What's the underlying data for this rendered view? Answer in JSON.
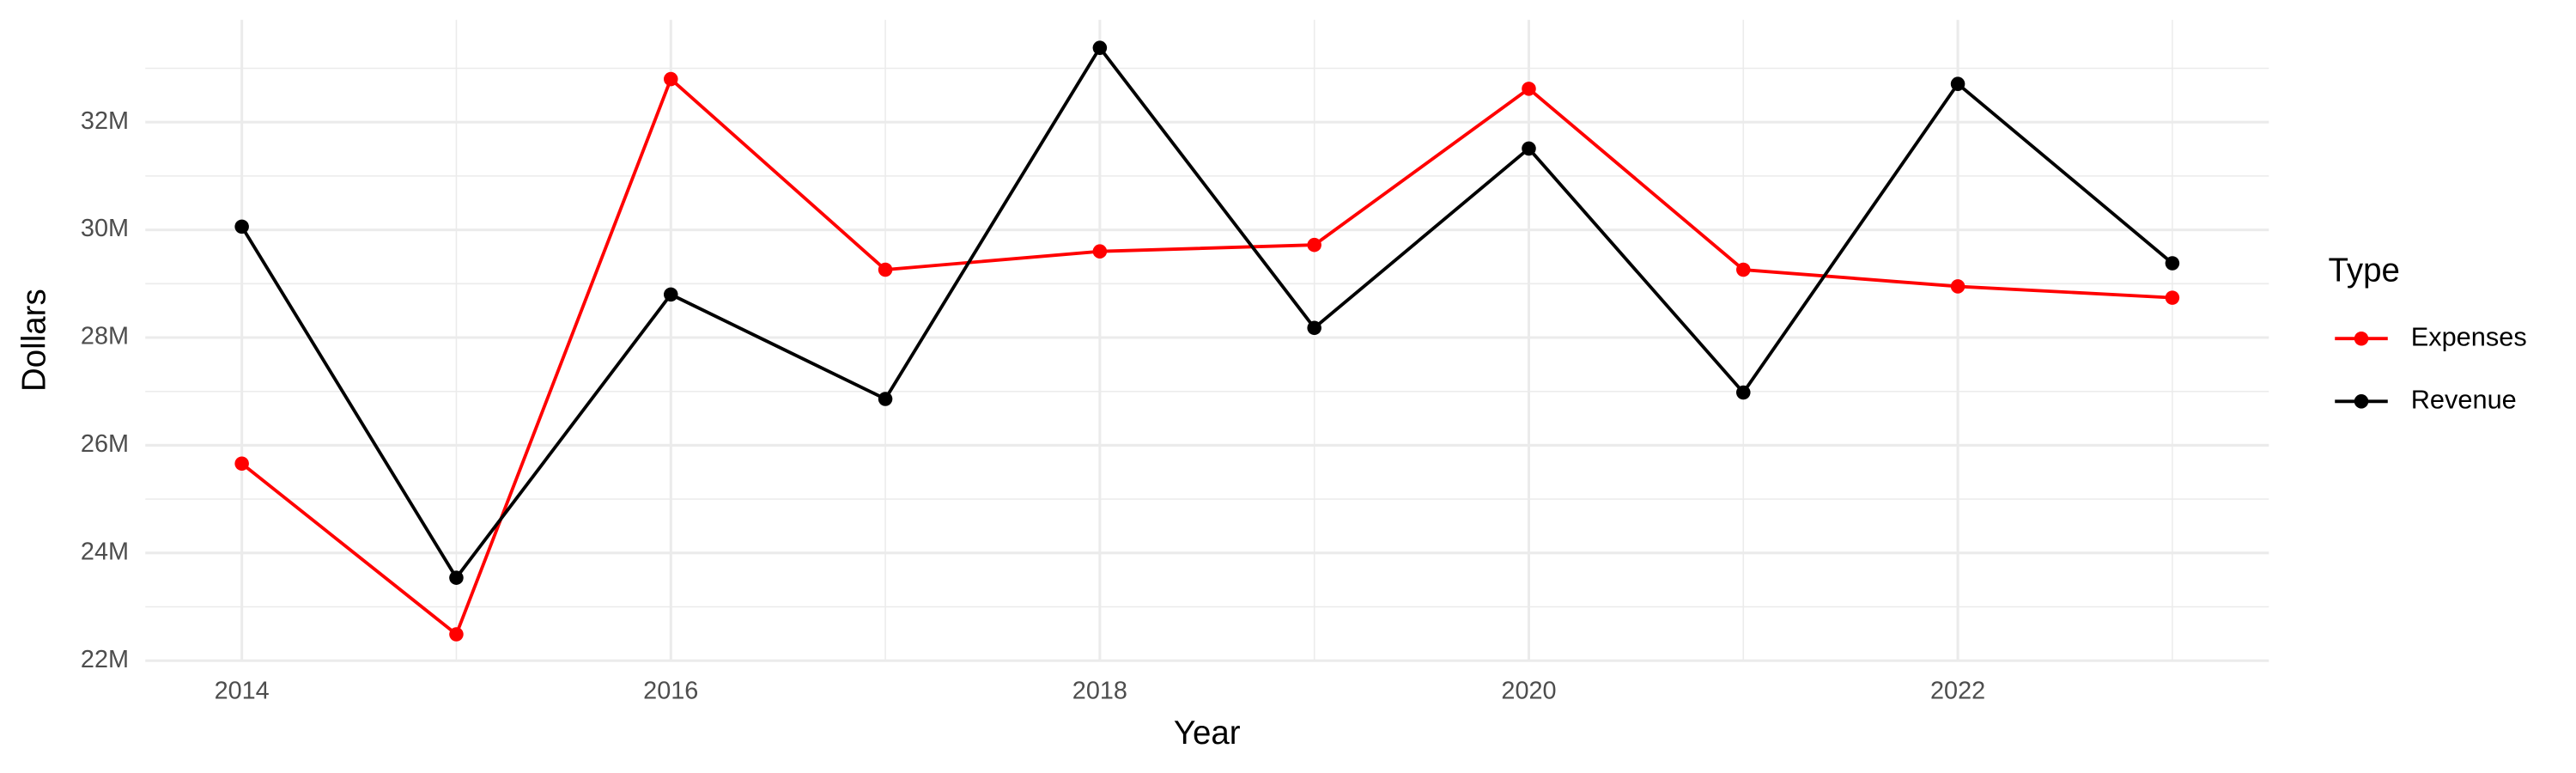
{
  "chart_data": {
    "type": "line",
    "x_label": "Year",
    "y_label": "Dollars",
    "legend_title": "Type",
    "legend_position": "right",
    "grid": true,
    "x": [
      2014,
      2015,
      2016,
      2017,
      2018,
      2019,
      2020,
      2021,
      2022,
      2023
    ],
    "series": [
      {
        "name": "Expenses",
        "color": "#ff0000",
        "values": [
          25660000,
          22490000,
          32800000,
          29260000,
          29600000,
          29720000,
          32620000,
          29260000,
          28950000,
          28740000
        ]
      },
      {
        "name": "Revenue",
        "color": "#000000",
        "values": [
          30060000,
          23540000,
          28800000,
          26860000,
          33380000,
          28180000,
          31510000,
          26980000,
          32710000,
          29380000
        ]
      }
    ],
    "xlim": [
      2013.55,
      2023.45
    ],
    "xticks": [
      2014,
      2016,
      2018,
      2020,
      2022
    ],
    "xminor_ticks": [
      2015,
      2017,
      2019,
      2021,
      2023
    ],
    "ylim": [
      22000000,
      33900000
    ],
    "yticks": [
      {
        "value": 22000000,
        "label": "22M"
      },
      {
        "value": 24000000,
        "label": "24M"
      },
      {
        "value": 26000000,
        "label": "26M"
      },
      {
        "value": 28000000,
        "label": "28M"
      },
      {
        "value": 30000000,
        "label": "30M"
      },
      {
        "value": 32000000,
        "label": "32M"
      }
    ],
    "yminor_ticks": [
      23000000,
      25000000,
      27000000,
      29000000,
      31000000,
      33000000
    ]
  }
}
